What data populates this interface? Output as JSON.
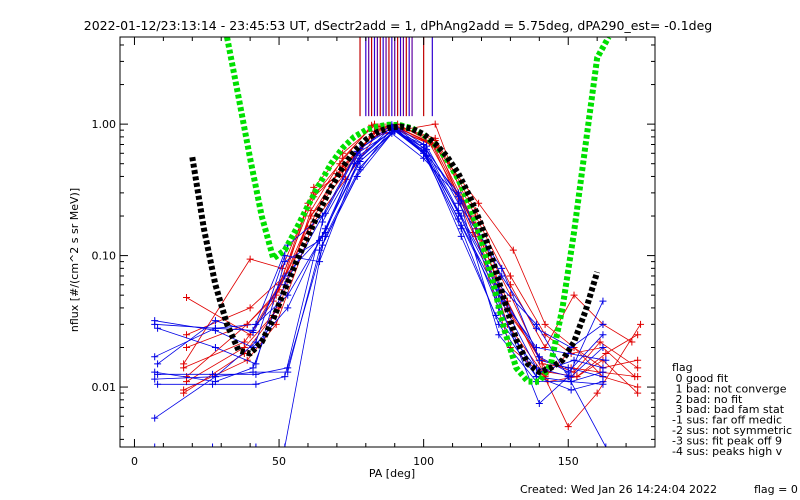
{
  "chart_data": {
    "type": "line",
    "title": "2022-01-12/23:13:14 - 23:45:53 UT, dSectr2add = 1, dPhAng2add = 5.75deg, dPA290_est=  -0.1deg",
    "xlabel": "PA [deg]",
    "ylabel": "nflux [#/(cm^2 s sr MeV)]",
    "xlim": [
      -5,
      180
    ],
    "ylim": [
      0.0035,
      4.6
    ],
    "yscale": "log",
    "xticks": [
      0,
      50,
      100,
      150
    ],
    "xtick_labels": [
      "0",
      "50",
      "100",
      "150"
    ],
    "yticks": [
      0.01,
      0.1,
      1.0
    ],
    "ytick_labels": [
      "0.01",
      "0.10",
      "1.00"
    ],
    "grid": false,
    "legend_title": "flag",
    "legend_items": [
      " 0 good fit",
      " 1 bad: not converge",
      " 2 bad: no fit",
      " 3 bad: bad fam stat",
      "-1 sus: far off medic",
      "-2 sus: not symmetric",
      "-3 sus: fit peak off 9",
      "-4 sus: peaks high v"
    ],
    "footer": "Created: Wed Jan 26 14:24:04 2022",
    "flag_label": "flag = 0",
    "colors": {
      "red_series": "#e00000",
      "blue_series": "#0000e6",
      "green_fit": "#00e000",
      "black_fit": "#000000",
      "markers": "#4000c0"
    },
    "series": [
      {
        "color": "red",
        "x": [
          18,
          40,
          50,
          62,
          72,
          84,
          92,
          104,
          118,
          130,
          142,
          152,
          162,
          172
        ],
        "y": [
          0.048,
          0.025,
          0.06,
          0.28,
          0.45,
          0.92,
          0.95,
          0.75,
          0.2,
          0.06,
          0.02,
          0.05,
          0.03,
          0.022
        ]
      },
      {
        "color": "red",
        "x": [
          17,
          38,
          48,
          61,
          72,
          83,
          91,
          103,
          117,
          129,
          143,
          153,
          163,
          174
        ],
        "y": [
          0.009,
          0.018,
          0.035,
          0.2,
          0.4,
          0.88,
          0.9,
          0.7,
          0.15,
          0.04,
          0.013,
          0.012,
          0.018,
          0.025
        ]
      },
      {
        "color": "red",
        "x": [
          18,
          39,
          49,
          60,
          71,
          82,
          90,
          102,
          117,
          130,
          141,
          151,
          161,
          174
        ],
        "y": [
          0.02,
          0.03,
          0.05,
          0.25,
          0.5,
          0.98,
          0.96,
          0.72,
          0.18,
          0.05,
          0.015,
          0.014,
          0.013,
          0.012
        ]
      },
      {
        "color": "red",
        "x": [
          17,
          40,
          51,
          62,
          73,
          84,
          92,
          104,
          119,
          131,
          142,
          152,
          162,
          174
        ],
        "y": [
          0.015,
          0.094,
          0.08,
          0.3,
          0.45,
          0.95,
          0.93,
          0.68,
          0.25,
          0.11,
          0.03,
          0.02,
          0.012,
          0.01
        ]
      },
      {
        "color": "red",
        "x": [
          18,
          38,
          50,
          61,
          72,
          83,
          91,
          103,
          118,
          129,
          141,
          150,
          160,
          175
        ],
        "y": [
          0.011,
          0.02,
          0.04,
          0.22,
          0.55,
          1.0,
          1.0,
          0.72,
          0.16,
          0.03,
          0.013,
          0.005,
          0.009,
          0.03
        ]
      },
      {
        "color": "red",
        "x": [
          17,
          39,
          49,
          62,
          73,
          84,
          92,
          105,
          118,
          130,
          142,
          152,
          162,
          174
        ],
        "y": [
          0.0095,
          0.016,
          0.03,
          0.18,
          0.38,
          0.85,
          0.88,
          0.66,
          0.14,
          0.02,
          0.012,
          0.02,
          0.014,
          0.016
        ]
      },
      {
        "color": "red",
        "x": [
          18,
          40,
          52,
          62,
          72,
          83,
          92,
          104,
          118,
          130,
          142,
          151,
          162,
          173
        ],
        "y": [
          0.025,
          0.04,
          0.07,
          0.33,
          0.6,
          0.97,
          0.95,
          0.78,
          0.22,
          0.07,
          0.025,
          0.018,
          0.02,
          0.012
        ]
      },
      {
        "color": "red",
        "x": [
          17,
          38,
          48,
          60,
          70,
          82,
          92,
          104,
          116,
          129,
          143,
          153,
          162,
          174
        ],
        "y": [
          0.014,
          0.022,
          0.045,
          0.16,
          0.42,
          0.8,
          0.9,
          1.0,
          0.2,
          0.045,
          0.011,
          0.012,
          0.016,
          0.009
        ]
      },
      {
        "color": "red",
        "x": [
          18,
          39,
          50,
          61,
          72,
          84,
          91,
          104,
          118,
          130,
          141,
          152,
          161,
          174
        ],
        "y": [
          0.012,
          0.03,
          0.055,
          0.2,
          0.48,
          0.9,
          0.94,
          0.7,
          0.17,
          0.035,
          0.016,
          0.013,
          0.022,
          0.014
        ]
      },
      {
        "color": "blue",
        "x": [
          7,
          28,
          42,
          53,
          65,
          78,
          90,
          100,
          113,
          126,
          139,
          150,
          162
        ],
        "y": [
          0.03,
          0.028,
          0.03,
          0.05,
          0.14,
          0.55,
          0.95,
          0.6,
          0.2,
          0.06,
          0.03,
          0.012,
          0.045
        ]
      },
      {
        "color": "blue",
        "x": [
          7,
          28,
          41,
          53,
          66,
          77,
          90,
          100,
          112,
          127,
          139,
          151,
          162
        ],
        "y": [
          0.017,
          0.028,
          0.027,
          0.12,
          0.21,
          0.6,
          0.9,
          0.62,
          0.3,
          0.07,
          0.028,
          0.02,
          0.03
        ]
      },
      {
        "color": "blue",
        "x": [
          7,
          27,
          42,
          52,
          65,
          78,
          89,
          101,
          113,
          125,
          140,
          150,
          163
        ],
        "y": [
          0.0035,
          0.0035,
          0.0035,
          0.0035,
          0.12,
          0.45,
          0.93,
          0.58,
          0.17,
          0.05,
          0.0075,
          0.012,
          0.0035
        ]
      },
      {
        "color": "blue",
        "x": [
          7,
          28,
          42,
          52,
          64,
          77,
          90,
          100,
          112,
          126,
          139,
          151,
          162
        ],
        "y": [
          0.0058,
          0.012,
          0.022,
          0.1,
          0.09,
          0.5,
          0.88,
          0.7,
          0.22,
          0.04,
          0.012,
          0.0095,
          0.011
        ]
      },
      {
        "color": "blue",
        "x": [
          8,
          28,
          41,
          52,
          66,
          78,
          90,
          101,
          112,
          127,
          140,
          150,
          162
        ],
        "y": [
          0.015,
          0.032,
          0.026,
          0.07,
          0.15,
          0.65,
          0.97,
          0.68,
          0.25,
          0.08,
          0.016,
          0.014,
          0.012
        ]
      },
      {
        "color": "blue",
        "x": [
          7,
          28,
          41,
          53,
          64,
          77,
          89,
          100,
          112,
          126,
          139,
          151,
          162
        ],
        "y": [
          0.0115,
          0.012,
          0.013,
          0.013,
          0.11,
          0.4,
          0.85,
          0.55,
          0.28,
          0.025,
          0.011,
          0.011,
          0.013
        ]
      },
      {
        "color": "blue",
        "x": [
          8,
          27,
          42,
          52,
          65,
          78,
          90,
          101,
          113,
          125,
          140,
          152,
          162
        ],
        "y": [
          0.0105,
          0.0105,
          0.0105,
          0.012,
          0.18,
          0.58,
          0.92,
          0.57,
          0.14,
          0.035,
          0.013,
          0.016,
          0.014
        ]
      },
      {
        "color": "blue",
        "x": [
          7,
          28,
          41,
          53,
          66,
          76,
          89,
          100,
          112,
          126,
          139,
          150,
          163
        ],
        "y": [
          0.032,
          0.027,
          0.02,
          0.04,
          0.16,
          0.5,
          0.96,
          0.63,
          0.19,
          0.05,
          0.02,
          0.018,
          0.016
        ]
      },
      {
        "color": "blue",
        "x": [
          8,
          28,
          42,
          52,
          64,
          78,
          90,
          101,
          113,
          127,
          139,
          151,
          162
        ],
        "y": [
          0.028,
          0.02,
          0.015,
          0.09,
          0.13,
          0.52,
          0.9,
          0.64,
          0.26,
          0.045,
          0.014,
          0.012,
          0.02
        ]
      },
      {
        "color": "blue",
        "x": [
          7,
          28,
          41,
          52,
          65,
          77,
          89,
          100,
          112,
          126,
          140,
          150,
          162
        ],
        "y": [
          0.013,
          0.011,
          0.014,
          0.06,
          0.2,
          0.62,
          0.99,
          0.66,
          0.21,
          0.055,
          0.017,
          0.013,
          0.025
        ]
      },
      {
        "color": "blue",
        "x": [
          8,
          27,
          42,
          53,
          66,
          78,
          90,
          100,
          113,
          126,
          139,
          151,
          162
        ],
        "y": [
          0.0125,
          0.0125,
          0.0125,
          0.014,
          0.14,
          0.47,
          0.89,
          0.6,
          0.16,
          0.03,
          0.012,
          0.011,
          0.0105
        ]
      }
    ],
    "fits": [
      {
        "name": "",
        "color": "green",
        "x": [
          32,
          36,
          40,
          44,
          48,
          52,
          56,
          60,
          64,
          68,
          72,
          76,
          80,
          84,
          88,
          92,
          96,
          100,
          104,
          108,
          112,
          116,
          120,
          124,
          128,
          132,
          136,
          140,
          144,
          148,
          152,
          156,
          160,
          164
        ],
        "y": [
          4.6,
          1.6,
          0.55,
          0.2,
          0.095,
          0.11,
          0.16,
          0.24,
          0.35,
          0.5,
          0.66,
          0.8,
          0.9,
          0.96,
          0.99,
          0.98,
          0.93,
          0.83,
          0.7,
          0.54,
          0.38,
          0.24,
          0.13,
          0.062,
          0.027,
          0.014,
          0.011,
          0.011,
          0.015,
          0.04,
          0.15,
          0.7,
          3.2,
          4.6
        ]
      },
      {
        "name": "",
        "color": "black",
        "x": [
          20,
          24,
          28,
          32,
          36,
          40,
          44,
          48,
          52,
          56,
          60,
          64,
          68,
          72,
          76,
          80,
          84,
          88,
          92,
          96,
          100,
          104,
          108,
          112,
          116,
          120,
          124,
          128,
          132,
          136,
          140,
          144,
          148,
          152,
          156,
          160
        ],
        "y": [
          0.56,
          0.16,
          0.06,
          0.03,
          0.019,
          0.018,
          0.022,
          0.033,
          0.055,
          0.09,
          0.14,
          0.22,
          0.33,
          0.47,
          0.62,
          0.76,
          0.87,
          0.94,
          0.96,
          0.92,
          0.84,
          0.71,
          0.57,
          0.42,
          0.28,
          0.17,
          0.09,
          0.045,
          0.023,
          0.015,
          0.013,
          0.014,
          0.016,
          0.022,
          0.038,
          0.075
        ]
      }
    ],
    "markers": {
      "x": [
        78,
        80,
        81,
        82,
        83,
        84,
        85,
        86,
        87,
        88,
        89,
        90,
        91,
        92,
        93,
        94,
        95,
        96,
        100,
        103
      ],
      "y_top": 4.6,
      "y_bottom": 1.15
    }
  }
}
